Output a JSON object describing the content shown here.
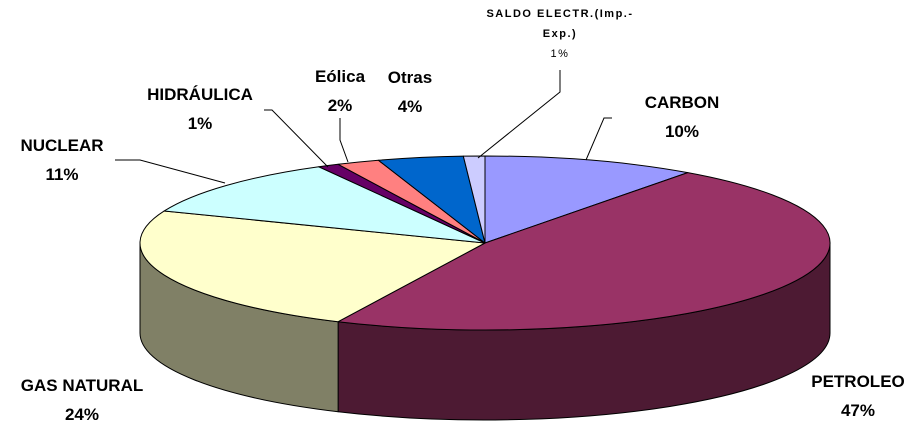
{
  "chart_data": {
    "type": "pie3d",
    "categories": [
      "CARBON",
      "PETROLEO",
      "GAS NATURAL",
      "NUCLEAR",
      "HIDRÁULICA",
      "Eólica",
      "Otras",
      "SALDO ELECTR.(Imp.-Exp.)"
    ],
    "values": [
      10,
      47,
      24,
      11,
      1,
      2,
      4,
      1
    ],
    "value_labels": [
      "10%",
      "47%",
      "24%",
      "11%",
      "1%",
      "2%",
      "4%",
      "1%"
    ],
    "colors": [
      "#9999ff",
      "#993366",
      "#ffffcc",
      "#ccffff",
      "#660066",
      "#ff8080",
      "#0066cc",
      "#ccccff"
    ]
  }
}
